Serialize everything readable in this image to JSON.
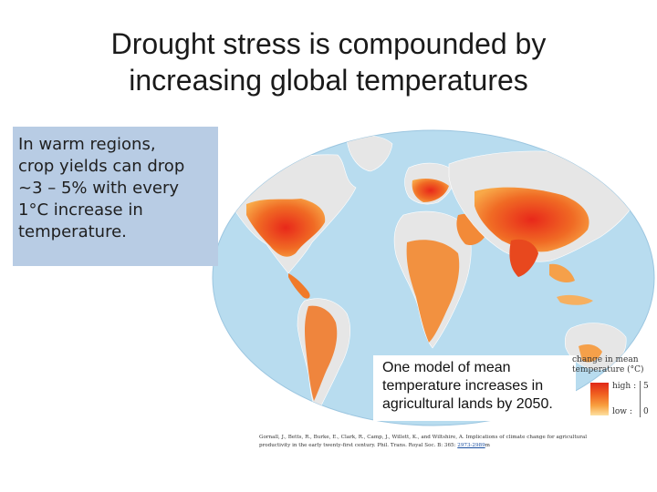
{
  "title": {
    "line1": "Drought stress is compounded by",
    "line2": "increasing global temperatures"
  },
  "callout": {
    "lines": [
      "In warm regions,",
      "crop yields can drop",
      "~3 – 5% with every",
      "1°C increase in",
      "temperature."
    ]
  },
  "caption": {
    "lines": [
      "One model of mean",
      "temperature increases in",
      "agricultural lands by 2050."
    ]
  },
  "legend": {
    "title_line1": "change in mean",
    "title_line2": "temperature (°C)",
    "high_label": "high :",
    "low_label": "low :",
    "max_value": "5",
    "min_value": "0",
    "colors": {
      "high": "#e02818",
      "mid": "#f06020",
      "low": "#fde0a0",
      "ocean": "#b8dcef",
      "land": "#e6e6e6"
    }
  },
  "citation": {
    "line1": "Gornall, J., Betts, R., Burke, E., Clark, R., Camp, J., Willett, K., and Wiltshire, A. Implications of climate change for agricultural",
    "line2_text": "productivity in the early twenty-first century. Phil. Trans. Royal Soc. B: 365: ",
    "line2_link": "2973-2989",
    "line2_end": "m"
  }
}
